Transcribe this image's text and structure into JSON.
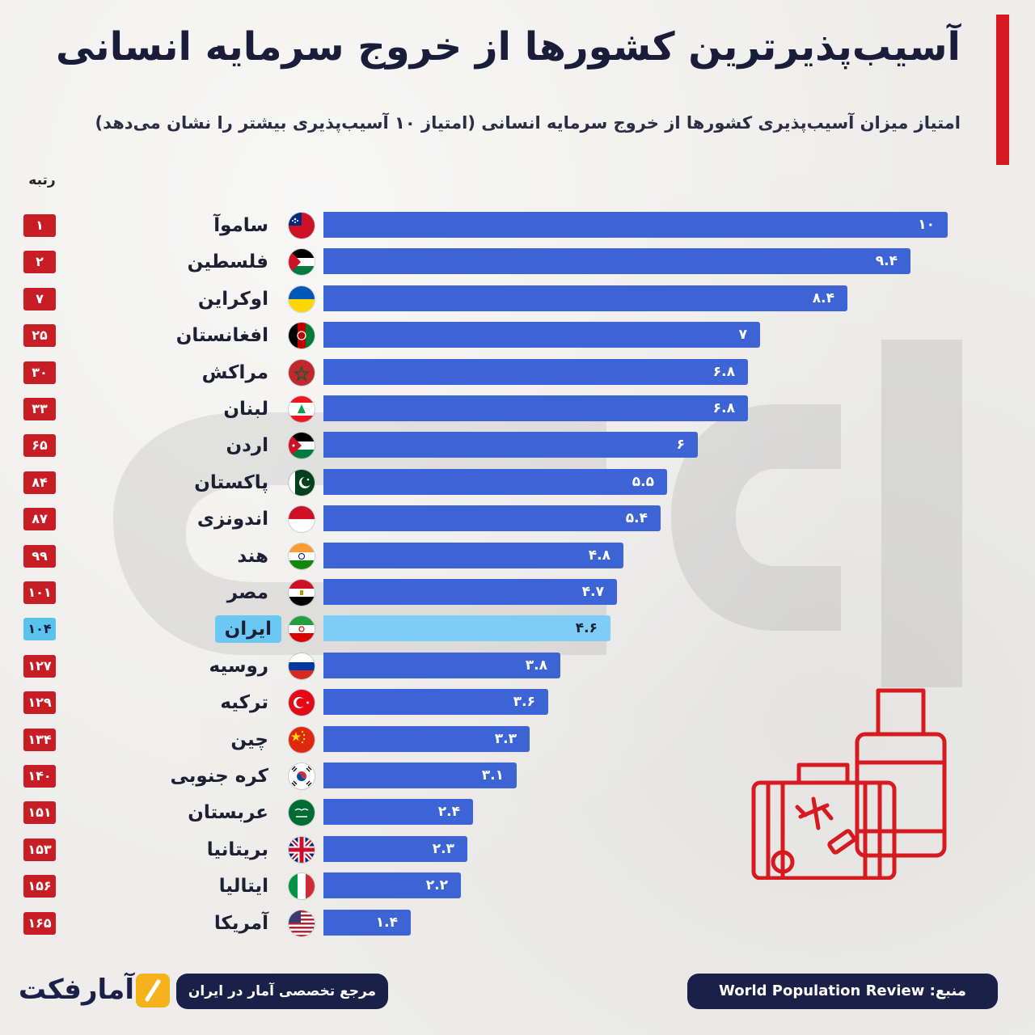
{
  "title": "آسیب‌پذیرترین کشورها از خروج سرمایه انسانی",
  "subtitle": "امتیاز میزان آسیب‌پذیری کشورها از خروج سرمایه انسانی (امتیاز ۱۰ آسیب‌پذیری بیشتر را نشان می‌دهد)",
  "rank_header": "رتبه",
  "colors": {
    "bar": "#3d64d4",
    "highlight_bar": "#7dcdf6",
    "rank_badge": "#c81d25",
    "highlight_badge": "#59c3f0",
    "accent": "#d71920",
    "footer_pill": "#1b2048"
  },
  "chart_data": {
    "type": "bar",
    "orientation": "horizontal",
    "xlim": [
      0,
      10
    ],
    "highlight": "ایران",
    "categories": [
      "ساموآ",
      "فلسطین",
      "اوکراین",
      "افغانستان",
      "مراکش",
      "لبنان",
      "اردن",
      "پاکستان",
      "اندونزی",
      "هند",
      "مصر",
      "ایران",
      "روسیه",
      "ترکیه",
      "چین",
      "کره جنوبی",
      "عربستان",
      "بریتانیا",
      "ایتالیا",
      "آمریکا"
    ],
    "values": [
      10,
      9.4,
      8.4,
      7,
      6.8,
      6.8,
      6,
      5.5,
      5.4,
      4.8,
      4.7,
      4.6,
      3.8,
      3.6,
      3.3,
      3.1,
      2.4,
      2.3,
      2.2,
      1.4
    ],
    "value_labels": [
      "۱۰",
      "۹.۴",
      "۸.۴",
      "۷",
      "۶.۸",
      "۶.۸",
      "۶",
      "۵.۵",
      "۵.۴",
      "۴.۸",
      "۴.۷",
      "۴.۶",
      "۳.۸",
      "۳.۶",
      "۳.۳",
      "۳.۱",
      "۲.۴",
      "۲.۳",
      "۲.۲",
      "۱.۴"
    ],
    "ranks": [
      "۱",
      "۲",
      "۷",
      "۲۵",
      "۳۰",
      "۳۳",
      "۶۵",
      "۸۴",
      "۸۷",
      "۹۹",
      "۱۰۱",
      "۱۰۴",
      "۱۲۷",
      "۱۲۹",
      "۱۳۴",
      "۱۴۰",
      "۱۵۱",
      "۱۵۳",
      "۱۵۶",
      "۱۶۵"
    ],
    "flags": [
      "samoa",
      "palestine",
      "ukraine",
      "afghanistan",
      "morocco",
      "lebanon",
      "jordan",
      "pakistan",
      "indonesia",
      "india",
      "egypt",
      "iran",
      "russia",
      "turkey",
      "china",
      "south-korea",
      "saudi-arabia",
      "united-kingdom",
      "italy",
      "united-states"
    ]
  },
  "footer": {
    "tagline": "مرجع تخصصی آمار در ایران",
    "source": "منبع: World Population Review",
    "logo_text": "آمارفکت"
  }
}
